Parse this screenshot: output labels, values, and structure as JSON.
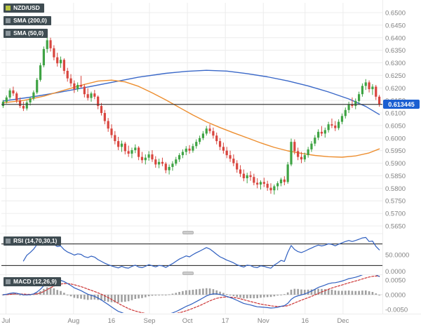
{
  "header": {
    "symbol": "NZD/USD",
    "indicators": [
      {
        "label": "SMA (200,0)"
      },
      {
        "label": "SMA (50,0)"
      }
    ]
  },
  "price_axis": {
    "labels": [
      "0.6500",
      "0.6450",
      "0.6400",
      "0.6350",
      "0.6300",
      "0.6250",
      "0.6200",
      "0.6150",
      "0.6100",
      "0.6050",
      "0.6000",
      "0.5950",
      "0.5900",
      "0.5850",
      "0.5800",
      "0.5750",
      "0.5700",
      "0.5650"
    ],
    "current_label": "0.613445",
    "current_value": 0.613445
  },
  "time_axis": {
    "labels": [
      {
        "text": "Jul",
        "pos": 0.012
      },
      {
        "text": "Aug",
        "pos": 0.19
      },
      {
        "text": "16",
        "pos": 0.29
      },
      {
        "text": "Sep",
        "pos": 0.39
      },
      {
        "text": "Oct",
        "pos": 0.49
      },
      {
        "text": "17",
        "pos": 0.59
      },
      {
        "text": "Nov",
        "pos": 0.69
      },
      {
        "text": "16",
        "pos": 0.8
      },
      {
        "text": "Dec",
        "pos": 0.9
      }
    ]
  },
  "panels": {
    "rsi": {
      "label": "RSI (14,70,30,1)",
      "axis_labels": [
        "50.0000",
        "0.0000"
      ]
    },
    "macd": {
      "label": "MACD (12,26,9)",
      "axis_labels": [
        "0.0050",
        "0.0000",
        "-0.0050"
      ],
      "axis_values": [
        0.005,
        0,
        -0.005
      ]
    }
  },
  "colors": {
    "badge_bg": "#3f4c52",
    "symbol_chip": "#b9c43f",
    "indicator_chip": "#8d979d",
    "up": "#3fa344",
    "down": "#d8453e",
    "rsi_line": "#2f5fc0",
    "macd_line": "#2f5fc0",
    "macd_signal": "#cc3333",
    "histogram": "#a0a0a0",
    "price_badge": "#1b5fd1",
    "grid": "#ececec",
    "axis_text": "#828282",
    "price_line": "#3c3c3c",
    "level_line": "#1a1a1a"
  },
  "chart_data": {
    "type": "candlestick",
    "symbol": "NZD/USD",
    "ylim": [
      0.565,
      0.65
    ],
    "current_price": 0.613445,
    "candles": [
      [
        0.6128,
        0.6152,
        0.612,
        0.6145
      ],
      [
        0.6145,
        0.617,
        0.6138,
        0.6162
      ],
      [
        0.6162,
        0.6198,
        0.6155,
        0.619
      ],
      [
        0.619,
        0.6205,
        0.6168,
        0.6178
      ],
      [
        0.6178,
        0.6185,
        0.614,
        0.615
      ],
      [
        0.615,
        0.6162,
        0.612,
        0.6128
      ],
      [
        0.6128,
        0.6145,
        0.6108,
        0.6118
      ],
      [
        0.6118,
        0.615,
        0.611,
        0.6142
      ],
      [
        0.6142,
        0.6165,
        0.613,
        0.6158
      ],
      [
        0.6158,
        0.619,
        0.615,
        0.6182
      ],
      [
        0.6182,
        0.624,
        0.6175,
        0.6232
      ],
      [
        0.6232,
        0.63,
        0.6225,
        0.629
      ],
      [
        0.629,
        0.6365,
        0.6282,
        0.6355
      ],
      [
        0.6355,
        0.641,
        0.634,
        0.639
      ],
      [
        0.639,
        0.64,
        0.6345,
        0.6358
      ],
      [
        0.6358,
        0.637,
        0.631,
        0.6322
      ],
      [
        0.6322,
        0.634,
        0.6285,
        0.6298
      ],
      [
        0.6298,
        0.6325,
        0.628,
        0.6312
      ],
      [
        0.6312,
        0.6318,
        0.6255,
        0.6268
      ],
      [
        0.6268,
        0.628,
        0.6225,
        0.6238
      ],
      [
        0.6238,
        0.6255,
        0.6205,
        0.6218
      ],
      [
        0.6218,
        0.623,
        0.618,
        0.6195
      ],
      [
        0.6195,
        0.6222,
        0.6185,
        0.6212
      ],
      [
        0.6212,
        0.6248,
        0.62,
        0.6205
      ],
      [
        0.6205,
        0.6215,
        0.6162,
        0.6175
      ],
      [
        0.6175,
        0.6198,
        0.615,
        0.616
      ],
      [
        0.616,
        0.6185,
        0.6145,
        0.6178
      ],
      [
        0.6178,
        0.6192,
        0.6155,
        0.6165
      ],
      [
        0.6165,
        0.617,
        0.6115,
        0.6128
      ],
      [
        0.6128,
        0.614,
        0.609,
        0.61
      ],
      [
        0.61,
        0.6112,
        0.6055,
        0.6068
      ],
      [
        0.6068,
        0.608,
        0.6025,
        0.6038
      ],
      [
        0.6038,
        0.6055,
        0.6,
        0.6012
      ],
      [
        0.6012,
        0.6028,
        0.5975,
        0.5988
      ],
      [
        0.5988,
        0.6005,
        0.5952,
        0.5965
      ],
      [
        0.5965,
        0.599,
        0.5945,
        0.5978
      ],
      [
        0.5978,
        0.5985,
        0.5935,
        0.5948
      ],
      [
        0.5948,
        0.597,
        0.5925,
        0.5938
      ],
      [
        0.5938,
        0.5962,
        0.592,
        0.5952
      ],
      [
        0.5952,
        0.5975,
        0.594,
        0.5962
      ],
      [
        0.5962,
        0.5968,
        0.5912,
        0.5925
      ],
      [
        0.5925,
        0.5945,
        0.59,
        0.5912
      ],
      [
        0.5912,
        0.5935,
        0.5895,
        0.5922
      ],
      [
        0.5922,
        0.5948,
        0.591,
        0.5935
      ],
      [
        0.5935,
        0.5952,
        0.5905,
        0.5915
      ],
      [
        0.5915,
        0.5928,
        0.5882,
        0.5895
      ],
      [
        0.5895,
        0.5918,
        0.588,
        0.5905
      ],
      [
        0.5905,
        0.5922,
        0.5888,
        0.5898
      ],
      [
        0.5898,
        0.5905,
        0.586,
        0.5872
      ],
      [
        0.5872,
        0.5895,
        0.5855,
        0.5885
      ],
      [
        0.5885,
        0.5908,
        0.587,
        0.5898
      ],
      [
        0.5898,
        0.5925,
        0.589,
        0.5915
      ],
      [
        0.5915,
        0.594,
        0.5905,
        0.5932
      ],
      [
        0.5932,
        0.5955,
        0.592,
        0.5945
      ],
      [
        0.5945,
        0.5968,
        0.5932,
        0.5958
      ],
      [
        0.5958,
        0.5972,
        0.5938,
        0.595
      ],
      [
        0.595,
        0.5978,
        0.5942,
        0.5968
      ],
      [
        0.5968,
        0.5995,
        0.5958,
        0.5985
      ],
      [
        0.5985,
        0.601,
        0.5975,
        0.6
      ],
      [
        0.6,
        0.6028,
        0.5992,
        0.6018
      ],
      [
        0.6018,
        0.6048,
        0.601,
        0.6038
      ],
      [
        0.6038,
        0.6055,
        0.6018,
        0.6028
      ],
      [
        0.6028,
        0.6042,
        0.5998,
        0.601
      ],
      [
        0.601,
        0.6022,
        0.5975,
        0.5988
      ],
      [
        0.5988,
        0.6,
        0.5952,
        0.5965
      ],
      [
        0.5965,
        0.5982,
        0.5938,
        0.595
      ],
      [
        0.595,
        0.5965,
        0.592,
        0.5932
      ],
      [
        0.5932,
        0.595,
        0.5905,
        0.5918
      ],
      [
        0.5918,
        0.5935,
        0.5888,
        0.59
      ],
      [
        0.59,
        0.5912,
        0.5862,
        0.5875
      ],
      [
        0.5875,
        0.5892,
        0.5845,
        0.5858
      ],
      [
        0.5858,
        0.5875,
        0.5828,
        0.584
      ],
      [
        0.584,
        0.5862,
        0.582,
        0.5852
      ],
      [
        0.5852,
        0.5868,
        0.583,
        0.5845
      ],
      [
        0.5845,
        0.5858,
        0.5812,
        0.5822
      ],
      [
        0.5822,
        0.584,
        0.58,
        0.5815
      ],
      [
        0.5815,
        0.5832,
        0.5795,
        0.5825
      ],
      [
        0.5825,
        0.5842,
        0.5805,
        0.5818
      ],
      [
        0.5818,
        0.583,
        0.579,
        0.5802
      ],
      [
        0.5802,
        0.582,
        0.5778,
        0.5792
      ],
      [
        0.5792,
        0.5815,
        0.5775,
        0.5808
      ],
      [
        0.5808,
        0.5828,
        0.5792,
        0.582
      ],
      [
        0.582,
        0.5842,
        0.5808,
        0.5835
      ],
      [
        0.5835,
        0.5848,
        0.5812,
        0.5825
      ],
      [
        0.5825,
        0.5905,
        0.5818,
        0.5895
      ],
      [
        0.5895,
        0.5998,
        0.5888,
        0.5985
      ],
      [
        0.5985,
        0.5995,
        0.5935,
        0.5948
      ],
      [
        0.5948,
        0.5962,
        0.5912,
        0.5925
      ],
      [
        0.5925,
        0.5945,
        0.59,
        0.5915
      ],
      [
        0.5915,
        0.5942,
        0.5905,
        0.5932
      ],
      [
        0.5932,
        0.5965,
        0.5922,
        0.5955
      ],
      [
        0.5955,
        0.5988,
        0.5945,
        0.5978
      ],
      [
        0.5978,
        0.6012,
        0.5968,
        0.6002
      ],
      [
        0.6002,
        0.6035,
        0.5992,
        0.6025
      ],
      [
        0.6025,
        0.6048,
        0.6008,
        0.6018
      ],
      [
        0.6018,
        0.6042,
        0.6002,
        0.6032
      ],
      [
        0.6032,
        0.6065,
        0.6022,
        0.6055
      ],
      [
        0.6055,
        0.6078,
        0.604,
        0.605
      ],
      [
        0.605,
        0.6068,
        0.6028,
        0.604
      ],
      [
        0.604,
        0.6075,
        0.6032,
        0.6065
      ],
      [
        0.6065,
        0.6098,
        0.6055,
        0.6088
      ],
      [
        0.6088,
        0.6122,
        0.6078,
        0.6112
      ],
      [
        0.6112,
        0.6145,
        0.61,
        0.6135
      ],
      [
        0.6135,
        0.6162,
        0.612,
        0.6128
      ],
      [
        0.6128,
        0.6158,
        0.6115,
        0.6148
      ],
      [
        0.6148,
        0.6185,
        0.6138,
        0.6175
      ],
      [
        0.6175,
        0.6218,
        0.6165,
        0.6208
      ],
      [
        0.6208,
        0.6235,
        0.6192,
        0.6222
      ],
      [
        0.6222,
        0.623,
        0.6182,
        0.6195
      ],
      [
        0.6195,
        0.6215,
        0.6172,
        0.6205
      ],
      [
        0.6205,
        0.6212,
        0.6152,
        0.6165
      ],
      [
        0.6165,
        0.6172,
        0.6125,
        0.6134
      ]
    ],
    "overlays": [
      {
        "name": "SMA (200,0)",
        "period": 200,
        "color": "#3a68c8",
        "points": [
          [
            0,
            0.6148
          ],
          [
            8,
            0.6163
          ],
          [
            16,
            0.6181
          ],
          [
            24,
            0.6201
          ],
          [
            32,
            0.6222
          ],
          [
            40,
            0.6243
          ],
          [
            48,
            0.6258
          ],
          [
            54,
            0.6266
          ],
          [
            60,
            0.627
          ],
          [
            66,
            0.6267
          ],
          [
            72,
            0.6257
          ],
          [
            78,
            0.6244
          ],
          [
            84,
            0.6228
          ],
          [
            90,
            0.6208
          ],
          [
            96,
            0.6184
          ],
          [
            102,
            0.6156
          ],
          [
            107,
            0.6126
          ],
          [
            111,
            0.6094
          ]
        ]
      },
      {
        "name": "SMA (50,0)",
        "period": 50,
        "color": "#ed8e2f",
        "points": [
          [
            0,
            0.6141
          ],
          [
            6,
            0.615
          ],
          [
            12,
            0.6167
          ],
          [
            18,
            0.6191
          ],
          [
            24,
            0.6214
          ],
          [
            28,
            0.6227
          ],
          [
            32,
            0.6231
          ],
          [
            36,
            0.6224
          ],
          [
            40,
            0.6206
          ],
          [
            44,
            0.618
          ],
          [
            48,
            0.6152
          ],
          [
            52,
            0.6122
          ],
          [
            56,
            0.6092
          ],
          [
            60,
            0.6065
          ],
          [
            64,
            0.6042
          ],
          [
            68,
            0.6021
          ],
          [
            72,
            0.6001
          ],
          [
            76,
            0.5981
          ],
          [
            80,
            0.5963
          ],
          [
            84,
            0.5949
          ],
          [
            88,
            0.5939
          ],
          [
            92,
            0.5931
          ],
          [
            96,
            0.5926
          ],
          [
            100,
            0.5924
          ],
          [
            104,
            0.5929
          ],
          [
            108,
            0.5941
          ],
          [
            111,
            0.5957
          ]
        ]
      }
    ],
    "indicators": {
      "rsi_period": 14,
      "rsi_levels": [
        70,
        30
      ],
      "macd": [
        12,
        26,
        9
      ]
    }
  }
}
